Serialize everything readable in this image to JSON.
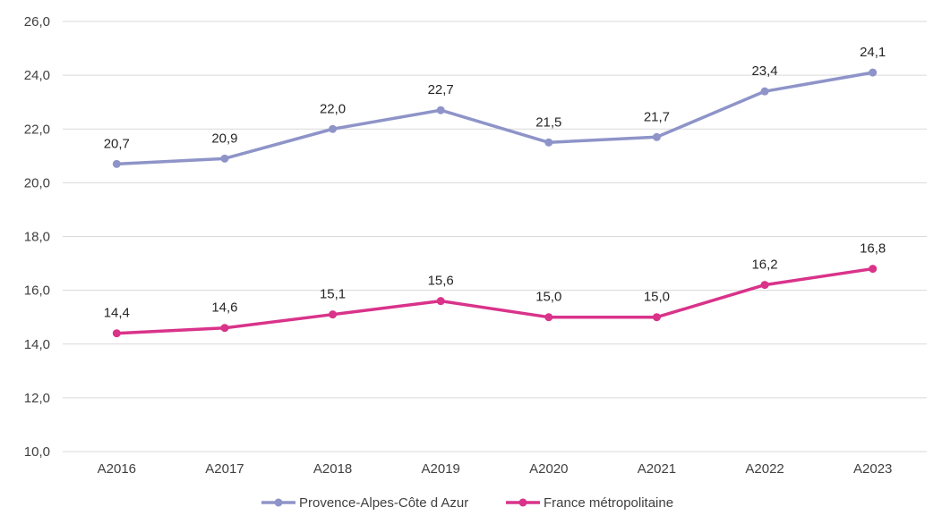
{
  "chart_data": {
    "type": "line",
    "categories": [
      "A2016",
      "A2017",
      "A2018",
      "A2019",
      "A2020",
      "A2021",
      "A2022",
      "A2023"
    ],
    "ylim": [
      10.0,
      26.0
    ],
    "yticks": [
      "10,0",
      "12,0",
      "14,0",
      "16,0",
      "18,0",
      "20,0",
      "22,0",
      "24,0",
      "26,0"
    ],
    "grid": true,
    "legend_position": "bottom",
    "series": [
      {
        "name": "Provence-Alpes-Côte d Azur",
        "color": "#8e94c8",
        "values": [
          20.7,
          20.9,
          22.0,
          22.7,
          21.5,
          21.7,
          23.4,
          24.1
        ],
        "labels": [
          "20,7",
          "20,9",
          "22,0",
          "22,7",
          "21,5",
          "21,7",
          "23,4",
          "24,1"
        ]
      },
      {
        "name": "France métropolitaine",
        "color": "#d9338a",
        "values": [
          14.4,
          14.6,
          15.1,
          15.6,
          15.0,
          15.0,
          16.2,
          16.8
        ],
        "labels": [
          "14,4",
          "14,6",
          "15,1",
          "15,6",
          "15,0",
          "15,0",
          "16,2",
          "16,8"
        ]
      }
    ]
  }
}
